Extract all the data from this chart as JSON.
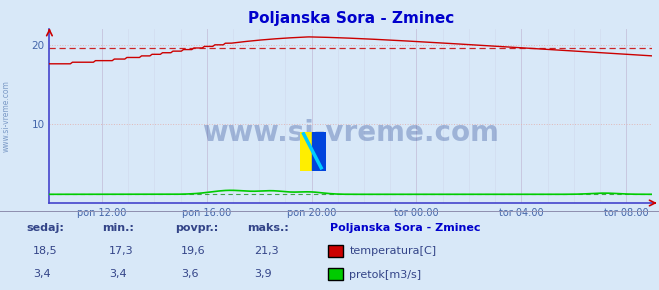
{
  "title": "Poljanska Sora - Zminec",
  "title_color": "#0000cc",
  "bg_color": "#d8e8f8",
  "plot_bg_color": "#d8e8f8",
  "grid_color_v": "#c8c8e0",
  "grid_color_h": "#e0b8b8",
  "border_left_color": "#4444cc",
  "border_bottom_color": "#4444cc",
  "ylim": [
    0,
    22
  ],
  "yticks": [
    10,
    20
  ],
  "avg_line_value": 19.6,
  "avg_line_color": "#cc0000",
  "temp_color": "#cc0000",
  "flow_color": "#00cc00",
  "flow_avg_color": "#008800",
  "watermark_text": "www.si-vreme.com",
  "watermark_color": "#1a3a8c",
  "sidebar_text": "www.si-vreme.com",
  "sidebar_color": "#6688bb",
  "tick_label_color": "#4466aa",
  "stats_label_color": "#334488",
  "legend_title": "Poljanska Sora - Zminec",
  "legend_title_color": "#0000cc",
  "stat_labels": [
    "sedaj:",
    "min.:",
    "povpr.:",
    "maks.:"
  ],
  "temp_stats": [
    "18,5",
    "17,3",
    "19,6",
    "21,3"
  ],
  "flow_stats": [
    "3,4",
    "3,4",
    "3,6",
    "3,9"
  ],
  "legend_entries": [
    "temperatura[C]",
    "pretok[m3/s]"
  ],
  "legend_colors": [
    "#cc0000",
    "#00cc00"
  ],
  "x_tick_labels": [
    "pon 12:00",
    "pon 16:00",
    "pon 20:00",
    "tor 00:00",
    "tor 04:00",
    "tor 08:00"
  ],
  "n_points": 289,
  "logo_yellow": "#ffee00",
  "logo_blue": "#0044dd",
  "logo_cyan": "#00ccff"
}
